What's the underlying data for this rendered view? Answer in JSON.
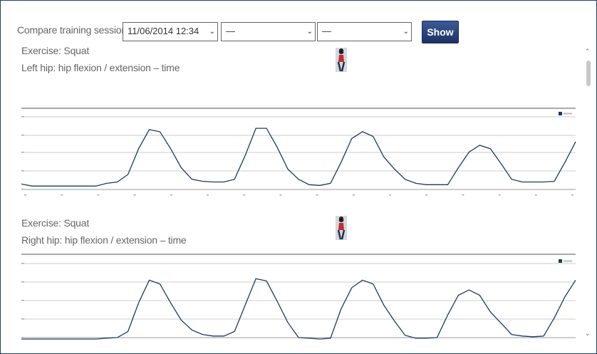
{
  "toolbar": {
    "compare_label": "Compare training sessions",
    "session_1": "11/06/2014 12:34",
    "session_2": "—",
    "session_3": "—",
    "show_label": "Show"
  },
  "colors": {
    "line": "#1c3a63",
    "button": "#2a4680",
    "grid": "#cccccc"
  },
  "sections": [
    {
      "exercise": "Exercise: Squat",
      "title": "Left hip: hip flexion / extension – time",
      "icon": "woman-figure-icon"
    },
    {
      "exercise": "Exercise: Squat",
      "title": "Right hip: hip flexion / extension – time",
      "icon": "woman-figure-icon"
    }
  ],
  "chart_data": [
    {
      "type": "line",
      "title": "Left hip: hip flexion / extension – time",
      "legend_position": "top-right",
      "grid": true,
      "ylim": [
        -10,
        100
      ],
      "series": [
        {
          "values": [
            -2,
            -5,
            -5,
            -5,
            -5,
            -5,
            -5,
            -5,
            -1,
            1,
            12,
            50,
            78,
            75,
            50,
            22,
            5,
            2,
            1,
            1,
            5,
            40,
            80,
            80,
            52,
            20,
            5,
            -3,
            -4,
            -1,
            30,
            65,
            75,
            68,
            38,
            20,
            5,
            -1,
            -3,
            -3,
            -3,
            22,
            45,
            55,
            50,
            28,
            5,
            1,
            1,
            1,
            2,
            30,
            60
          ]
        }
      ]
    },
    {
      "type": "line",
      "title": "Right hip: hip flexion / extension – time",
      "legend_position": "top-right",
      "grid": true,
      "ylim": [
        0,
        100
      ],
      "series": [
        {
          "values": [
            0,
            0,
            0,
            0,
            0,
            0,
            0,
            0,
            1,
            2,
            10,
            48,
            78,
            73,
            48,
            25,
            12,
            6,
            4,
            4,
            10,
            45,
            80,
            77,
            50,
            22,
            2,
            1,
            0,
            1,
            40,
            68,
            78,
            73,
            45,
            24,
            5,
            1,
            1,
            2,
            32,
            58,
            65,
            58,
            36,
            21,
            6,
            4,
            3,
            4,
            28,
            56,
            78
          ]
        }
      ]
    }
  ]
}
